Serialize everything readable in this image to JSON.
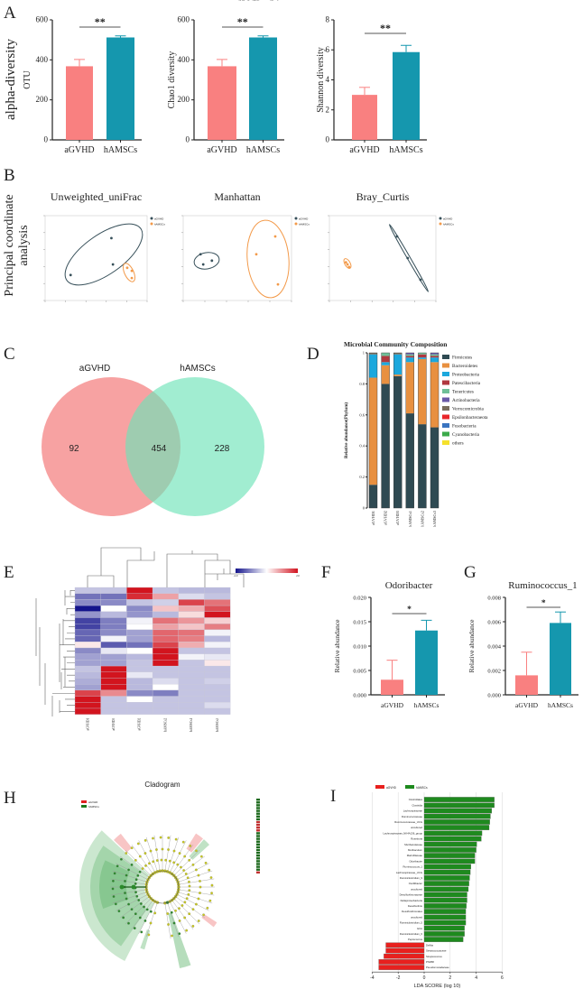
{
  "panel_labels": [
    "A",
    "B",
    "C",
    "D",
    "E",
    "F",
    "G",
    "H",
    "I"
  ],
  "side_titles": {
    "alpha": "alpha-diversity",
    "pcoa_line1": "Principal coordinate",
    "pcoa_line2": "analysis"
  },
  "chart_data": [
    {
      "type": "bar",
      "title": "",
      "ylabel": "OTU",
      "categories": [
        "aGVHD",
        "hAMSCs"
      ],
      "values": [
        368,
        512
      ],
      "error_upper": [
        402,
        520
      ],
      "ylim": [
        0,
        600
      ],
      "yticks": [
        "0",
        "200",
        "400",
        "600"
      ],
      "significance": "**",
      "colors": [
        "#F98080",
        "#1597AE"
      ]
    },
    {
      "type": "bar",
      "title": "",
      "ylabel": "Chao1 diversity",
      "categories": [
        "aGVHD",
        "hAMSCs"
      ],
      "values": [
        368,
        512
      ],
      "error_upper": [
        402,
        520
      ],
      "ylim": [
        0,
        600
      ],
      "yticks": [
        "0",
        "200",
        "400",
        "600"
      ],
      "significance": "**",
      "colors": [
        "#F98080",
        "#1597AE"
      ]
    },
    {
      "type": "bar",
      "title": "",
      "ylabel": "Shannon diversity",
      "categories": [
        "aGVHD",
        "hAMSCs"
      ],
      "values": [
        3.0,
        5.85
      ],
      "error_upper": [
        3.5,
        6.3
      ],
      "ylim": [
        0,
        8
      ],
      "yticks": [
        "0",
        "2",
        "4",
        "6",
        "8"
      ],
      "significance": "**",
      "colors": [
        "#F98080",
        "#1597AE"
      ]
    },
    {
      "type": "scatter",
      "title": "Unweighted_uniFrac",
      "xlim": [
        -1,
        1
      ],
      "ylim": [
        -1,
        1
      ],
      "legend": [
        "aGVHD",
        "hAMSCs"
      ],
      "colors": [
        "#37505A",
        "#F39A4A"
      ],
      "series": [
        {
          "name": "aGVHD",
          "points": [
            [
              -0.5,
              -0.4
            ],
            [
              0.3,
              0.47
            ],
            [
              0.33,
              -0.15
            ]
          ]
        },
        {
          "name": "hAMSCs",
          "points": [
            [
              0.61,
              -0.23
            ],
            [
              0.7,
              -0.3
            ],
            [
              0.7,
              -0.47
            ]
          ]
        }
      ]
    },
    {
      "type": "scatter",
      "title": "Manhattan",
      "xlim": [
        -1,
        1
      ],
      "ylim": [
        -1,
        1
      ],
      "legend": [
        "aGVHD",
        "hAMSCs"
      ],
      "colors": [
        "#37505A",
        "#F39A4A"
      ],
      "series": [
        {
          "name": "aGVHD",
          "points": [
            [
              -0.68,
              0.09
            ],
            [
              -0.63,
              -0.15
            ],
            [
              -0.47,
              -0.06
            ]
          ]
        },
        {
          "name": "hAMSCs",
          "points": [
            [
              0.35,
              0.09
            ],
            [
              0.7,
              0.51
            ],
            [
              0.75,
              -0.62
            ]
          ]
        }
      ]
    },
    {
      "type": "scatter",
      "title": "Bray_Curtis",
      "xlim": [
        -1,
        1
      ],
      "ylim": [
        -1,
        1
      ],
      "legend": [
        "aGVHD",
        "hAMSCs"
      ],
      "colors": [
        "#37505A",
        "#F39A4A"
      ],
      "series": [
        {
          "name": "aGVHD",
          "points": [
            [
              0.27,
              0.51
            ],
            [
              0.47,
              0.0
            ],
            [
              0.71,
              -0.51
            ]
          ]
        },
        {
          "name": "hAMSCs",
          "points": [
            [
              -0.69,
              -0.1
            ],
            [
              -0.66,
              -0.15
            ],
            [
              -0.63,
              -0.21
            ]
          ]
        }
      ]
    },
    {
      "type": "venn",
      "sets": [
        "aGVHD",
        "hAMSCs"
      ],
      "only_left": "92",
      "intersection": "454",
      "only_right": "228",
      "colors": [
        "#F47A7A",
        "#6FE3B8"
      ]
    },
    {
      "type": "bar",
      "stacked": true,
      "title": "Microbial Community Composition",
      "ylabel": "Relative abundance(Phylum)",
      "ylim": [
        0,
        1
      ],
      "yticks": [
        "0",
        "0.2",
        "0.4",
        "0.6",
        "0.8",
        "1"
      ],
      "categories": [
        "aGVHD1",
        "aGVHD2",
        "aGVHD3",
        "hAMSCs1",
        "hAMSCs2",
        "hAMSCs3"
      ],
      "series": [
        {
          "name": "Firmicutes",
          "color": "#2F4A52",
          "values": [
            0.15,
            0.8,
            0.85,
            0.61,
            0.54,
            0.52
          ]
        },
        {
          "name": "Bacteroidetes",
          "color": "#E89040",
          "values": [
            0.69,
            0.12,
            0.01,
            0.33,
            0.42,
            0.42
          ]
        },
        {
          "name": "Proteobacteria",
          "color": "#1CA8DD",
          "values": [
            0.15,
            0.02,
            0.13,
            0.03,
            0.01,
            0.03
          ]
        },
        {
          "name": "Patescibacteria",
          "color": "#B0383F",
          "values": [
            0.0,
            0.04,
            0.0,
            0.01,
            0.02,
            0.01
          ]
        },
        {
          "name": "Tenericutes",
          "color": "#6FBF98",
          "values": [
            0.0,
            0.02,
            0.0,
            0.01,
            0.01,
            0.01
          ]
        },
        {
          "name": "Actinobacteria",
          "color": "#6A5AA8",
          "values": [
            0.0,
            0.0,
            0.0,
            0.01,
            0.0,
            0.01
          ]
        },
        {
          "name": "Verrucomicrobia",
          "color": "#7A6E5E",
          "values": [
            0.01,
            0.0,
            0.01,
            0.0,
            0.0,
            0.0
          ]
        },
        {
          "name": "Epsilonbacteraeota",
          "color": "#E8262A",
          "values": [
            0,
            0,
            0,
            0,
            0,
            0
          ]
        },
        {
          "name": "Fusobacteria",
          "color": "#3A74C0",
          "values": [
            0,
            0,
            0,
            0,
            0,
            0
          ]
        },
        {
          "name": "Cyanobacteria",
          "color": "#3BAA4A",
          "values": [
            0,
            0,
            0,
            0,
            0,
            0
          ]
        },
        {
          "name": "others",
          "color": "#F5E12C",
          "values": [
            0,
            0,
            0,
            0,
            0,
            0
          ]
        }
      ]
    },
    {
      "type": "heatmap",
      "scale": [
        -2,
        2
      ],
      "scale_labels": [
        "-2.0",
        "2.0"
      ],
      "columns": [
        "aGVHD1",
        "aGVHD3",
        "aGVHD2",
        "hAMSCs2",
        "hAMSCs1",
        "hAMSCs3"
      ],
      "rows": [
        "Turicibacter",
        "Candidatus_Saccharimonas",
        "Ruminococcaceae_UCG-014",
        "Unassigned",
        "Muribaculum",
        "Odoribacter",
        "Ruminococcus_1",
        "uncultured",
        "Rikenella",
        "Lachnospiraceae_NK4A136_group",
        "Alistipes",
        "Roseburia",
        "Ruminiclostridium_9",
        "Lachnoclostridium",
        "Parabacteroides",
        "Alloprevotella",
        "Bacteroides",
        "Escherichia-Shigella",
        "Pseudomonas",
        "Lactobacillus",
        "Candidatus_Arthromitus"
      ],
      "values": [
        [
          -0.5,
          -0.5,
          2,
          -0.5,
          -0.6,
          -0.6
        ],
        [
          -1.2,
          -1.2,
          1.8,
          0.8,
          -0.3,
          -0.5
        ],
        [
          -1.0,
          -1.0,
          -0.5,
          -0.4,
          1.6,
          1.2
        ],
        [
          -2.0,
          0,
          -1.0,
          0.5,
          0.7,
          1.5
        ],
        [
          -0.9,
          -0.6,
          -0.9,
          -0.6,
          0.3,
          2
        ],
        [
          -1.6,
          -1.1,
          -0.1,
          1.2,
          0.9,
          0.4
        ],
        [
          -1.6,
          -1.1,
          0,
          0.8,
          0.5,
          1.1
        ],
        [
          -1.3,
          -1.0,
          -0.8,
          1.3,
          1.2,
          -0.1
        ],
        [
          -1.3,
          -0.1,
          -0.8,
          1.3,
          1.1,
          -0.6
        ],
        [
          0.2,
          -1.4,
          -1.2,
          1.6,
          0.7,
          -0.1
        ],
        [
          -1.0,
          -0.2,
          0,
          2,
          -0.5,
          -0.5
        ],
        [
          -0.8,
          -0.8,
          -0.6,
          2,
          -0.1,
          -0.2
        ],
        [
          -0.8,
          -0.8,
          -0.5,
          2,
          -0.5,
          0.2
        ],
        [
          -0.5,
          2,
          -0.5,
          -0.5,
          -0.5,
          -0.5
        ],
        [
          -0.6,
          2,
          -0.2,
          -0.5,
          -0.5,
          -0.5
        ],
        [
          -0.7,
          2,
          -0.6,
          -0.3,
          -0.5,
          -0.4
        ],
        [
          -0.8,
          2,
          -0.6,
          0,
          -0.5,
          -0.5
        ],
        [
          1.6,
          1.0,
          -1.0,
          -1.1,
          -0.5,
          -0.5
        ],
        [
          2,
          -0.5,
          0,
          -0.5,
          -0.5,
          -0.5
        ],
        [
          2,
          -0.5,
          -0.5,
          -0.5,
          -0.5,
          -0.3
        ],
        [
          2,
          -0.5,
          -0.5,
          -0.5,
          -0.5,
          -0.5
        ]
      ]
    },
    {
      "type": "bar",
      "title": "Odoribacter",
      "ylabel": "Relative abundance",
      "categories": [
        "aGVHD",
        "hAMSCs"
      ],
      "values": [
        0.0031,
        0.0132
      ],
      "error_upper": [
        0.0071,
        0.0153
      ],
      "ylim": [
        0,
        0.02
      ],
      "yticks": [
        "0.000",
        "0.005",
        "0.010",
        "0.015",
        "0.020"
      ],
      "significance": "*",
      "colors": [
        "#F98080",
        "#1597AE"
      ]
    },
    {
      "type": "bar",
      "title": "Ruminococcus_1",
      "ylabel": "Relative abundance",
      "categories": [
        "aGVHD",
        "hAMSCs"
      ],
      "values": [
        0.0016,
        0.0059
      ],
      "error_upper": [
        0.0035,
        0.0068
      ],
      "ylim": [
        0,
        0.008
      ],
      "yticks": [
        "0.000",
        "0.002",
        "0.004",
        "0.006",
        "0.008"
      ],
      "significance": "*",
      "colors": [
        "#F98080",
        "#1597AE"
      ]
    },
    {
      "type": "cladogram",
      "title": "Cladogram",
      "legend": [
        "aGVHD",
        "hAMSCs"
      ],
      "colors": [
        "#E02020",
        "#1E7A1E"
      ]
    },
    {
      "type": "bar",
      "orientation": "horizontal",
      "xlabel": "LDA SCORE (log 10)",
      "xlim": [
        -4,
        6
      ],
      "xticks": [
        "-4",
        "-2",
        "0",
        "2",
        "4",
        "6"
      ],
      "legend": [
        "aGVHD",
        "hAMSCs"
      ],
      "colors": [
        "#E8201E",
        "#1E8A1E"
      ],
      "bars": [
        {
          "label": "Clostridiales",
          "value": 5.4,
          "group": 1
        },
        {
          "label": "Clostridia",
          "value": 5.4,
          "group": 1
        },
        {
          "label": "Lachnospiraceae",
          "value": 5.2,
          "group": 1
        },
        {
          "label": "Ruminococcaceae",
          "value": 5.1,
          "group": 1
        },
        {
          "label": "Ruminococcaceae_UCG",
          "value": 5.05,
          "group": 1
        },
        {
          "label": "uncultured",
          "value": 5.0,
          "group": 1
        },
        {
          "label": "Lachnospiraceae_NK4A136_group",
          "value": 4.45,
          "group": 1
        },
        {
          "label": "Roseburia",
          "value": 4.4,
          "group": 1
        },
        {
          "label": "Muribaculaceae",
          "value": 4.05,
          "group": 1
        },
        {
          "label": "Muribaculum",
          "value": 4.0,
          "group": 1
        },
        {
          "label": "Marinifilaceae",
          "value": 3.9,
          "group": 1
        },
        {
          "label": "Odoribacter",
          "value": 3.9,
          "group": 1
        },
        {
          "label": "Ruminococcus_1",
          "value": 3.6,
          "group": 1
        },
        {
          "label": "Lachnospiraceae_UCG",
          "value": 3.55,
          "group": 1
        },
        {
          "label": "Ruminiclostridium_9",
          "value": 3.5,
          "group": 1
        },
        {
          "label": "Oscillibacter",
          "value": 3.45,
          "group": 1
        },
        {
          "label": "uncultured",
          "value": 3.4,
          "group": 1
        },
        {
          "label": "Desulfovibrionaceae",
          "value": 3.3,
          "group": 1
        },
        {
          "label": "Deltaproteobacteria",
          "value": 3.3,
          "group": 1
        },
        {
          "label": "Desulfovibrio",
          "value": 3.25,
          "group": 1
        },
        {
          "label": "Desulfovibrionales",
          "value": 3.2,
          "group": 1
        },
        {
          "label": "uncultured",
          "value": 3.2,
          "group": 1
        },
        {
          "label": "Ruminiclostridium_5",
          "value": 3.2,
          "group": 1
        },
        {
          "label": "GCA",
          "value": 3.1,
          "group": 1
        },
        {
          "label": "Ruminiclostridium_6",
          "value": 3.1,
          "group": 1
        },
        {
          "label": "Peptococcus",
          "value": 3.0,
          "group": 1
        },
        {
          "label": "Delftia",
          "value": -2.95,
          "group": 0
        },
        {
          "label": "Streptococcaceae",
          "value": -2.95,
          "group": 0
        },
        {
          "label": "Streptococcus",
          "value": -3.1,
          "group": 0
        },
        {
          "label": "PSD58",
          "value": -3.5,
          "group": 0
        },
        {
          "label": "Pseudomonadaceae",
          "value": -3.5,
          "group": 0
        }
      ]
    }
  ]
}
